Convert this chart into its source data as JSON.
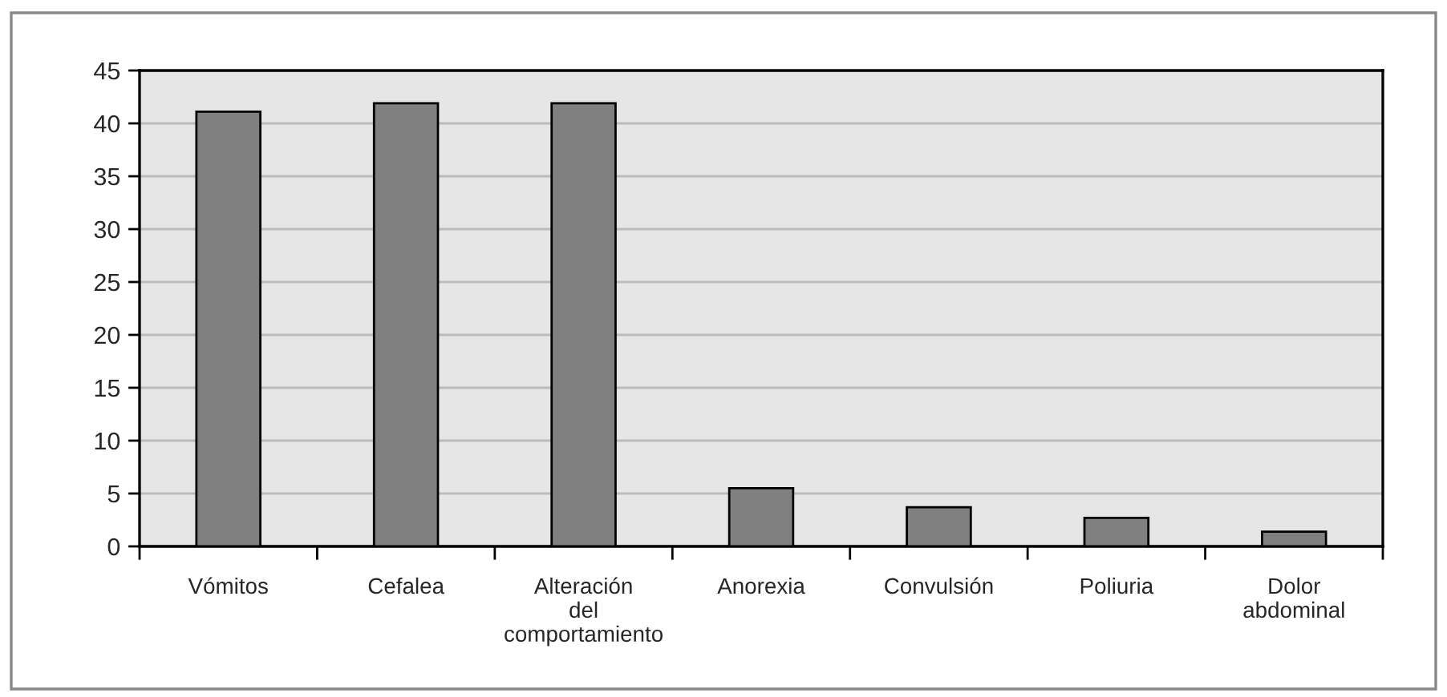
{
  "chart_data": {
    "type": "bar",
    "categories": [
      "Vómitos",
      "Cefalea",
      "Alteración\ndel\ncomportamiento",
      "Anorexia",
      "Convulsión",
      "Poliuria",
      "Dolor\nabdominal"
    ],
    "values": [
      41.1,
      41.9,
      41.9,
      5.5,
      3.7,
      2.7,
      1.4
    ],
    "color": "#808080",
    "ylim": [
      0,
      45
    ],
    "yticks": [
      0,
      5,
      10,
      15,
      20,
      25,
      30,
      35,
      40,
      45
    ],
    "grid": "y"
  }
}
